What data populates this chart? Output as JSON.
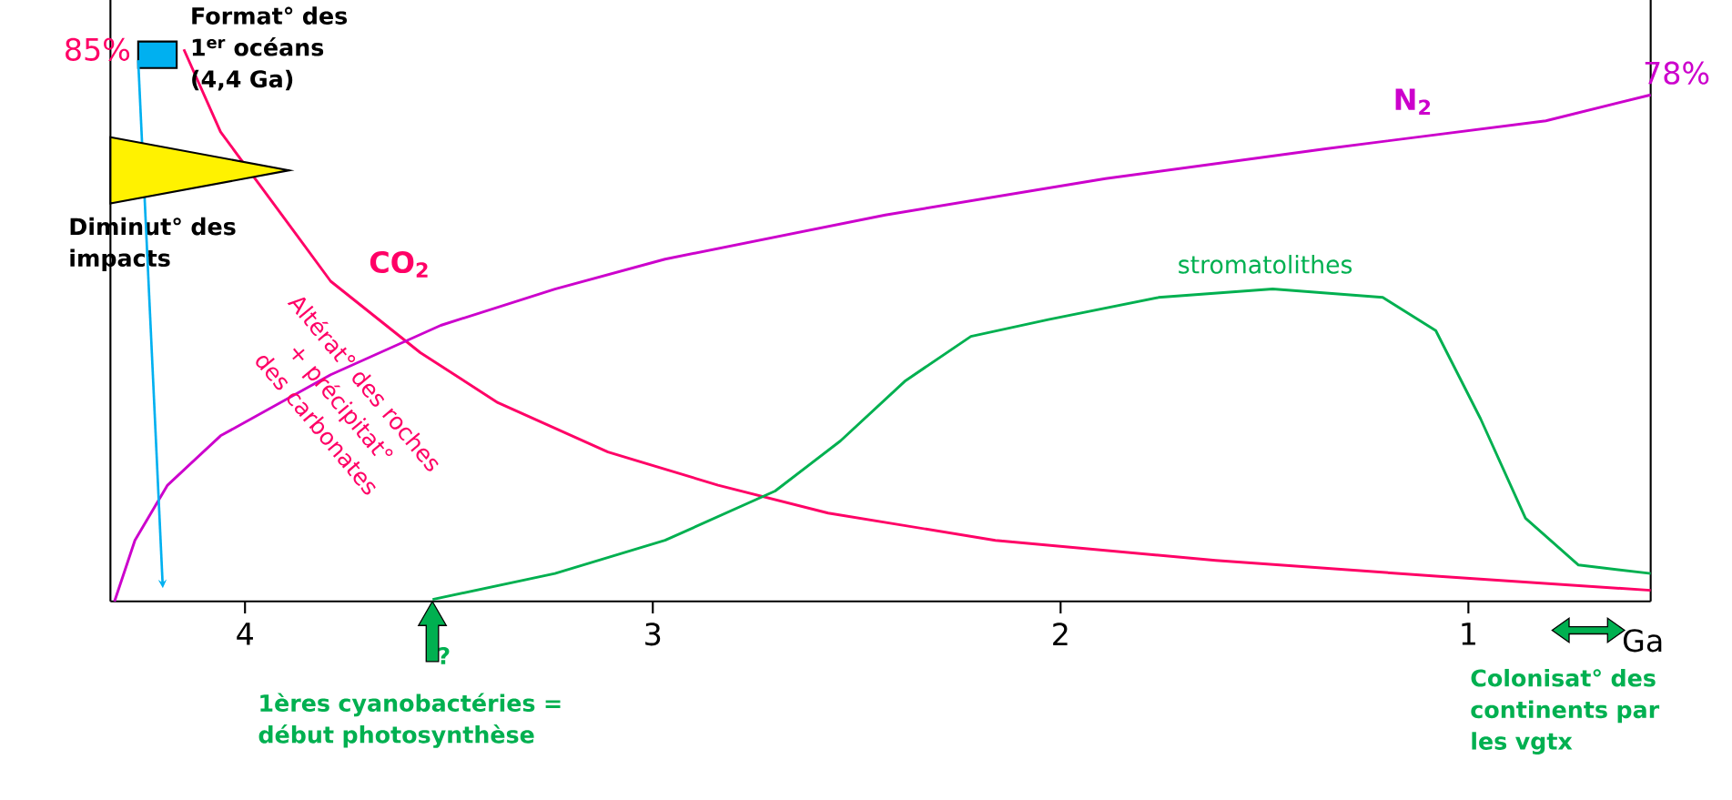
{
  "chart_data": {
    "type": "line",
    "xlabel": "Ga",
    "xlim": [
      4.33,
      0.553
    ],
    "xticks": [
      4,
      3,
      2,
      1
    ],
    "ylim": [
      0,
      92.7
    ],
    "tick_labels": "x",
    "series": [
      {
        "name": "CO$_{2}$",
        "color": "#ff0066",
        "x": [
          4.15,
          4.06,
          3.92,
          3.79,
          3.57,
          3.38,
          3.11,
          2.84,
          2.57,
          2.16,
          1.62,
          1.08,
          0.553
        ],
        "values": [
          85,
          72.3,
          60.4,
          49.3,
          38.3,
          30.6,
          23,
          17.9,
          13.6,
          9.4,
          6.3,
          3.9,
          1.7
        ],
        "value_labels": [
          "85%",
          null,
          null,
          null,
          null,
          null,
          null,
          null,
          null,
          null,
          null,
          null,
          null
        ]
      },
      {
        "name": "N$_{2}$",
        "color": "#cc00cc",
        "x": [
          4.32,
          4.27,
          4.19,
          4.06,
          3.79,
          3.52,
          3.24,
          2.97,
          2.43,
          1.89,
          1.35,
          0.81,
          0.553
        ],
        "values": [
          0,
          9.4,
          17.9,
          25.5,
          34.9,
          42.5,
          48.1,
          52.7,
          59.5,
          65.1,
          69.7,
          74,
          78
        ],
        "value_labels": [
          null,
          null,
          null,
          null,
          null,
          null,
          null,
          null,
          null,
          null,
          null,
          null,
          "78%"
        ]
      },
      {
        "name": "stromatolithes",
        "color": "#00b050",
        "x": [
          3.54,
          3.24,
          2.97,
          2.7,
          2.54,
          2.38,
          2.22,
          2.03,
          1.76,
          1.48,
          1.21,
          1.08,
          0.97,
          0.86,
          0.73,
          0.553
        ],
        "values": [
          0.3,
          4.3,
          9.4,
          17,
          24.7,
          34,
          40.8,
          43.4,
          46.8,
          48.1,
          46.8,
          41.7,
          28.1,
          12.8,
          5.6,
          4.3
        ]
      }
    ],
    "annotations": [
      "Format° des 1$^{er}$ océans (4,4 Ga)",
      "Diminut° des impacts",
      "Altérat° des roches + précipitat° des carbonates",
      "?",
      "1ères cyanobactéries = début photosynthèse",
      "Colonisat° des continents par les vgtx"
    ]
  }
}
